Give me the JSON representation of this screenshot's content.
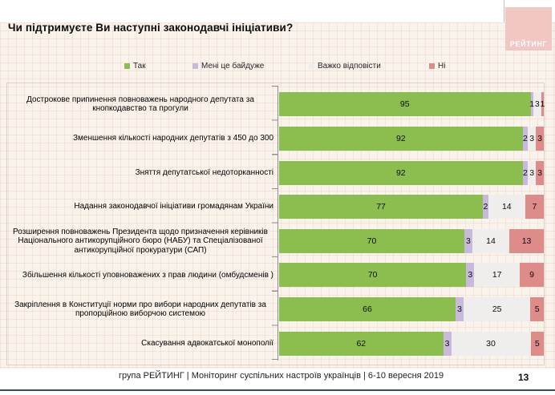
{
  "title": "Чи підтримуєте Ви наступні законодавчі ініціативи?",
  "logo": {
    "text": "РЕЙТИНГ",
    "bg_color": "#f2c6c2",
    "text_color": "#ffffff"
  },
  "chart_data": {
    "type": "bar",
    "orientation": "horizontal",
    "stacked": true,
    "unit": "%",
    "xlim": [
      0,
      100
    ],
    "legend_position": "top",
    "grid": false,
    "categories": [
      "Дострокове припинення повноважень народного депутата за кнопкодавство та прогули",
      "Зменшення кількості народних депутатів з 450 до 300",
      "Зняття депутатської недоторканності",
      "Надання законодавчої ініціативи громадянам України",
      "Розширення повноважень Президента щодо призначення керівників Національного антикорупційного бюро (НАБУ) та Спеціалізованої антикорупційної прокуратури (САП)",
      "Збільшення кількості уповноважених з прав людини (омбудсменів )",
      "Закріплення в Конституції норми про вибори народних депутатів за пропорційною виборчою системою",
      "Скасування адвокатської монополії"
    ],
    "series": [
      {
        "name": "Так",
        "color": "#8cbe4f",
        "values": [
          95,
          92,
          92,
          77,
          70,
          70,
          66,
          62
        ]
      },
      {
        "name": "Мені це байдуже",
        "color": "#c9badb",
        "values": [
          1,
          2,
          2,
          2,
          3,
          3,
          3,
          3
        ]
      },
      {
        "name": "Важко відповісти",
        "color": "#f0eeec",
        "values": [
          3,
          3,
          3,
          14,
          14,
          17,
          25,
          30
        ]
      },
      {
        "name": "Ні",
        "color": "#dd8c8a",
        "values": [
          1,
          3,
          3,
          7,
          13,
          9,
          5,
          5
        ]
      }
    ]
  },
  "footer": {
    "source": "група РЕЙТИНГ | Моніторинг суспільних настроїв українців | 6-10 вересня 2019",
    "page": "13"
  }
}
